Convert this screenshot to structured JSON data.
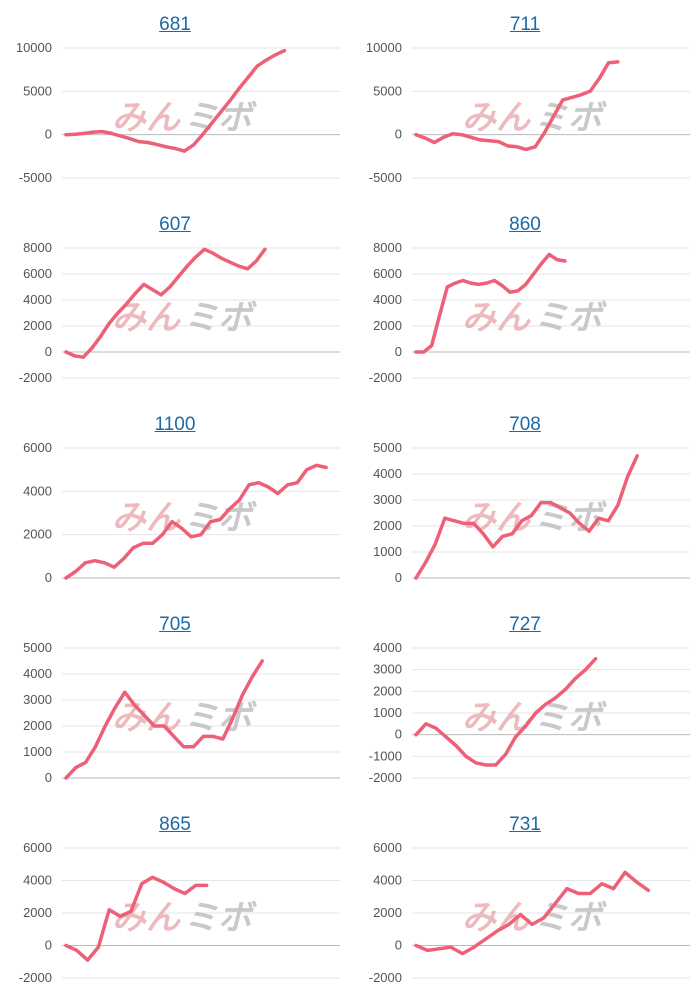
{
  "watermark": {
    "part1": "みん",
    "part2": "ミボ"
  },
  "colors": {
    "line": "#ee5f78",
    "grid": "#e5e5e5",
    "axis": "#bbbbbb",
    "title": "#1a6aa8"
  },
  "chart_data": [
    {
      "type": "line",
      "title": "681",
      "yticks": [
        10000,
        5000,
        0,
        -5000
      ],
      "ylim": [
        -5000,
        10000
      ],
      "values": [
        0,
        50,
        150,
        300,
        350,
        150,
        -150,
        -450,
        -800,
        -900,
        -1150,
        -1400,
        -1600,
        -1900,
        -1200,
        0,
        1300,
        2600,
        3900,
        5300,
        6600,
        7900,
        8600,
        9200,
        9700
      ]
    },
    {
      "type": "line",
      "title": "711",
      "yticks": [
        10000,
        5000,
        0,
        -5000
      ],
      "ylim": [
        -5000,
        10000
      ],
      "values": [
        0,
        -400,
        -900,
        -300,
        100,
        0,
        -300,
        -600,
        -700,
        -800,
        -1300,
        -1400,
        -1700,
        -1400,
        200,
        2100,
        4000,
        4300,
        4600,
        5000,
        6500,
        8300,
        8400
      ]
    },
    {
      "type": "line",
      "title": "607",
      "yticks": [
        8000,
        6000,
        4000,
        2000,
        0,
        -2000
      ],
      "ylim": [
        -2000,
        8000
      ],
      "values": [
        0,
        -300,
        -400,
        300,
        1200,
        2200,
        3000,
        3700,
        4500,
        5200,
        4800,
        4400,
        5000,
        5800,
        6600,
        7300,
        7900,
        7600,
        7200,
        6900,
        6600,
        6400,
        7000,
        7900
      ]
    },
    {
      "type": "line",
      "title": "860",
      "yticks": [
        8000,
        6000,
        4000,
        2000,
        0,
        -2000
      ],
      "ylim": [
        -2000,
        8000
      ],
      "values": [
        0,
        0,
        500,
        2800,
        5000,
        5300,
        5500,
        5300,
        5200,
        5300,
        5500,
        5100,
        4600,
        4700,
        5200,
        6000,
        6800,
        7500,
        7100,
        7000
      ]
    },
    {
      "type": "line",
      "title": "1100",
      "yticks": [
        6000,
        4000,
        2000,
        0
      ],
      "ylim": [
        0,
        6000
      ],
      "values": [
        0,
        300,
        700,
        800,
        700,
        500,
        900,
        1400,
        1600,
        1600,
        2000,
        2600,
        2300,
        1900,
        2000,
        2600,
        2700,
        3200,
        3600,
        4300,
        4400,
        4200,
        3900,
        4300,
        4400,
        5000,
        5200,
        5100
      ]
    },
    {
      "type": "line",
      "title": "708",
      "yticks": [
        5000,
        4000,
        3000,
        2000,
        1000,
        0
      ],
      "ylim": [
        0,
        5000
      ],
      "values": [
        0,
        600,
        1300,
        2300,
        2200,
        2100,
        2100,
        1700,
        1200,
        1600,
        1700,
        2200,
        2400,
        2900,
        2900,
        2700,
        2500,
        2100,
        1800,
        2300,
        2200,
        2800,
        3900,
        4700
      ]
    },
    {
      "type": "line",
      "title": "705",
      "yticks": [
        5000,
        4000,
        3000,
        2000,
        1000,
        0
      ],
      "ylim": [
        0,
        5000
      ],
      "values": [
        0,
        400,
        600,
        1200,
        2000,
        2700,
        3300,
        2800,
        2400,
        2000,
        2000,
        1600,
        1200,
        1200,
        1600,
        1600,
        1500,
        2300,
        3200,
        3900,
        4500
      ]
    },
    {
      "type": "line",
      "title": "727",
      "yticks": [
        4000,
        3000,
        2000,
        1000,
        0,
        -1000,
        -2000
      ],
      "ylim": [
        -2000,
        4000
      ],
      "values": [
        0,
        500,
        300,
        -100,
        -500,
        -1000,
        -1300,
        -1400,
        -1400,
        -900,
        -100,
        400,
        1000,
        1400,
        1700,
        2100,
        2600,
        3000,
        3500
      ]
    },
    {
      "type": "line",
      "title": "865",
      "yticks": [
        6000,
        4000,
        2000,
        0,
        -2000
      ],
      "ylim": [
        -2000,
        6000
      ],
      "values": [
        0,
        -300,
        -900,
        -100,
        2200,
        1800,
        2100,
        3800,
        4200,
        3900,
        3500,
        3200,
        3700,
        3700
      ]
    },
    {
      "type": "line",
      "title": "731",
      "yticks": [
        6000,
        4000,
        2000,
        0,
        -2000
      ],
      "ylim": [
        -2000,
        6000
      ],
      "values": [
        0,
        -300,
        -200,
        -100,
        -500,
        -100,
        400,
        900,
        1300,
        1900,
        1300,
        1700,
        2600,
        3500,
        3200,
        3200,
        3800,
        3500,
        4500,
        3900,
        3400
      ]
    }
  ]
}
